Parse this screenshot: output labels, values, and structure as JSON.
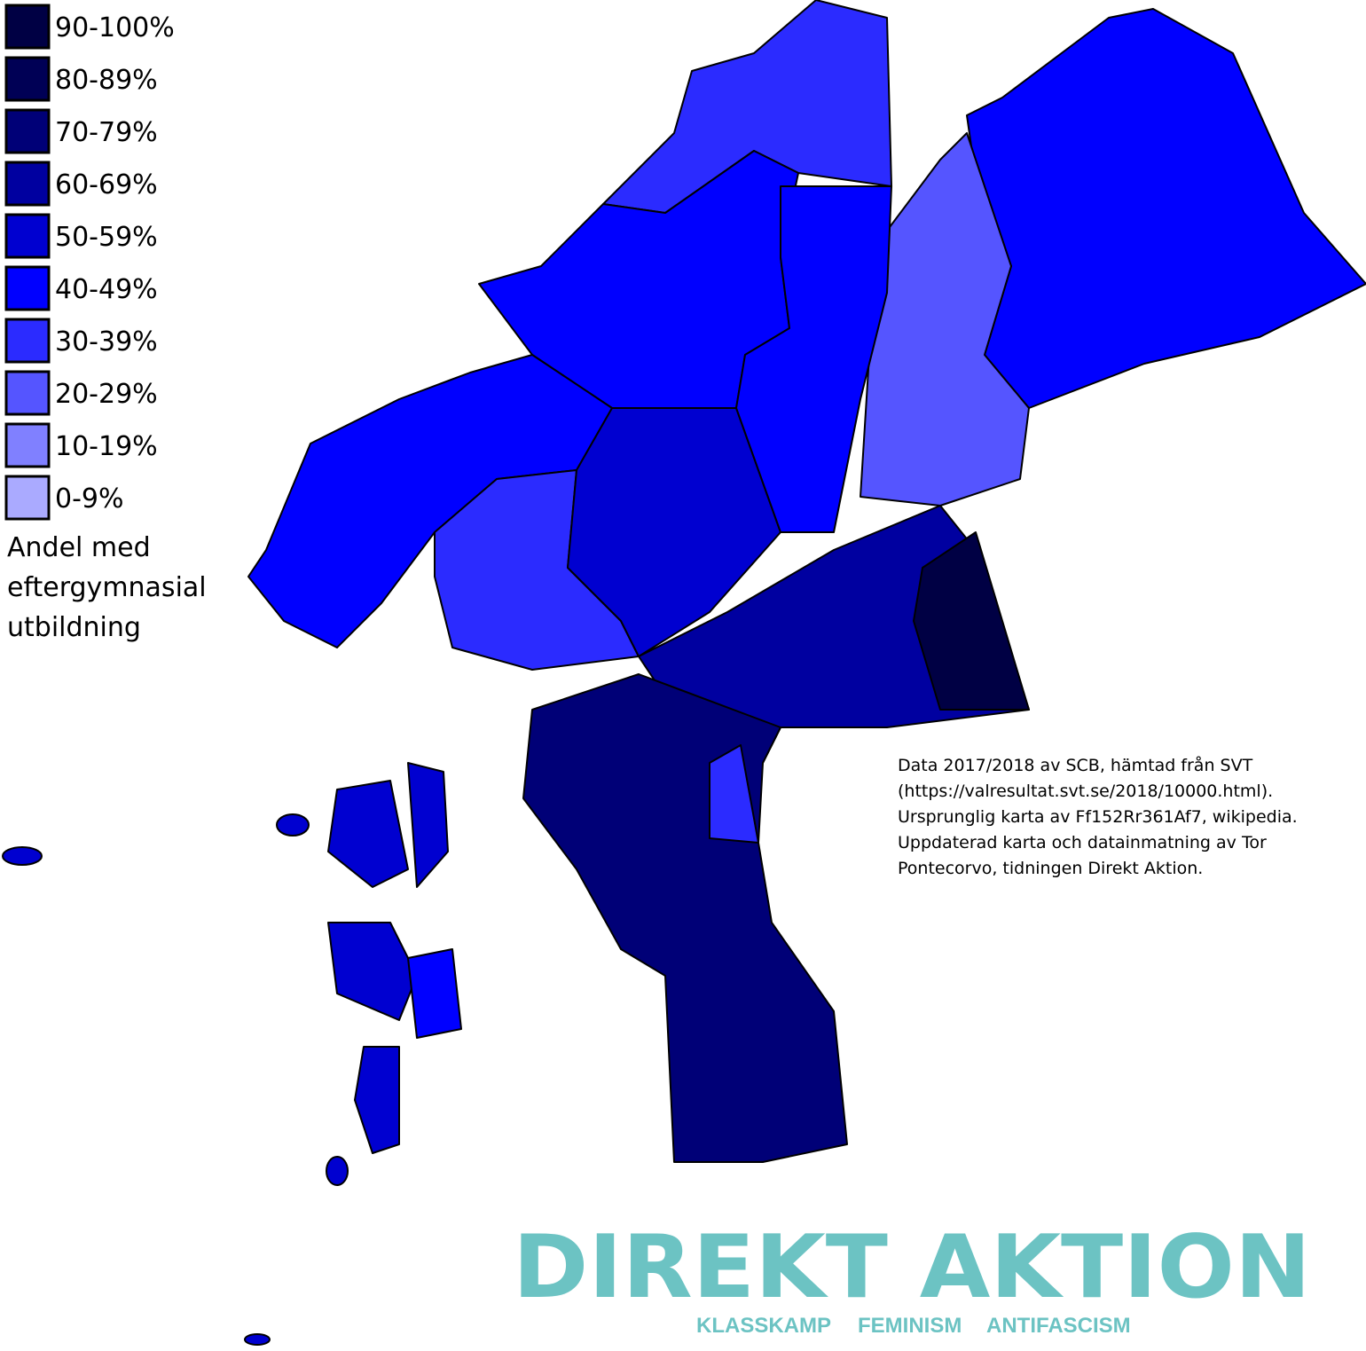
{
  "legend": {
    "items": [
      {
        "label": "90-100%",
        "color": "#000044"
      },
      {
        "label": "80-89%",
        "color": "#000055"
      },
      {
        "label": "70-79%",
        "color": "#000077"
      },
      {
        "label": "60-69%",
        "color": "#0000a0"
      },
      {
        "label": "50-59%",
        "color": "#0000d0"
      },
      {
        "label": "40-49%",
        "color": "#0000ff"
      },
      {
        "label": "30-39%",
        "color": "#2b2bff"
      },
      {
        "label": "20-29%",
        "color": "#5555ff"
      },
      {
        "label": "10-19%",
        "color": "#8080ff"
      },
      {
        "label": "0-9%",
        "color": "#aaaaff"
      }
    ],
    "title": [
      "Andel med",
      "eftergymnasial",
      "utbildning"
    ]
  },
  "credit": [
    "Data 2017/2018 av SCB, hämtad från SVT",
    "(https://valresultat.svt.se/2018/10000.html).",
    "Ursprunglig karta av Ff152Rr361Af7, wikipedia.",
    "Uppdaterad karta och datainmatning av Tor",
    "Pontecorvo, tidningen Direkt Aktion."
  ],
  "logo": {
    "name": "DIREKT AKTION",
    "tagline": [
      "KLASSKAMP",
      "FEMINISM",
      "ANTIFASCISM"
    ]
  }
}
